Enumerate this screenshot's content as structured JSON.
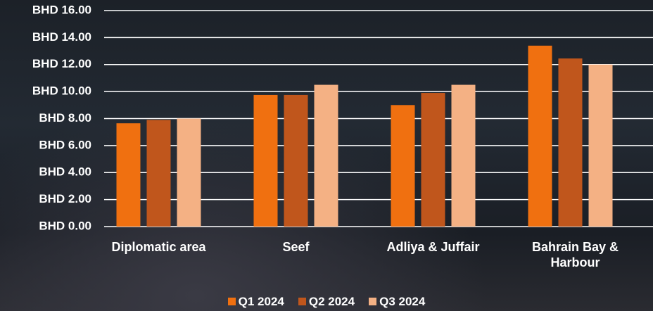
{
  "chart_data": {
    "type": "bar",
    "categories": [
      "Diplomatic area",
      "Seef",
      "Adliya & Juffair",
      "Bahrain Bay & Harbour"
    ],
    "series": [
      {
        "name": "Q1 2024",
        "color": "#f07010",
        "values": [
          7.65,
          9.75,
          9.0,
          13.4
        ]
      },
      {
        "name": "Q2 2024",
        "color": "#c0561c",
        "values": [
          7.9,
          9.75,
          9.9,
          12.45
        ]
      },
      {
        "name": "Q3 2024",
        "color": "#f4b184",
        "values": [
          8.0,
          10.5,
          10.5,
          12.0
        ]
      }
    ],
    "ylim": [
      0,
      16
    ],
    "yticks": [
      {
        "value": 0,
        "label": "BHD 0.00"
      },
      {
        "value": 2,
        "label": "BHD 2.00"
      },
      {
        "value": 4,
        "label": "BHD 4.00"
      },
      {
        "value": 6,
        "label": "BHD 6.00"
      },
      {
        "value": 8,
        "label": "BHD 8.00"
      },
      {
        "value": 10,
        "label": "BHD 10.00"
      },
      {
        "value": 12,
        "label": "BHD 12.00"
      },
      {
        "value": 14,
        "label": "BHD 14.00"
      },
      {
        "value": 16,
        "label": "BHD 16.00"
      }
    ],
    "grid": true
  }
}
